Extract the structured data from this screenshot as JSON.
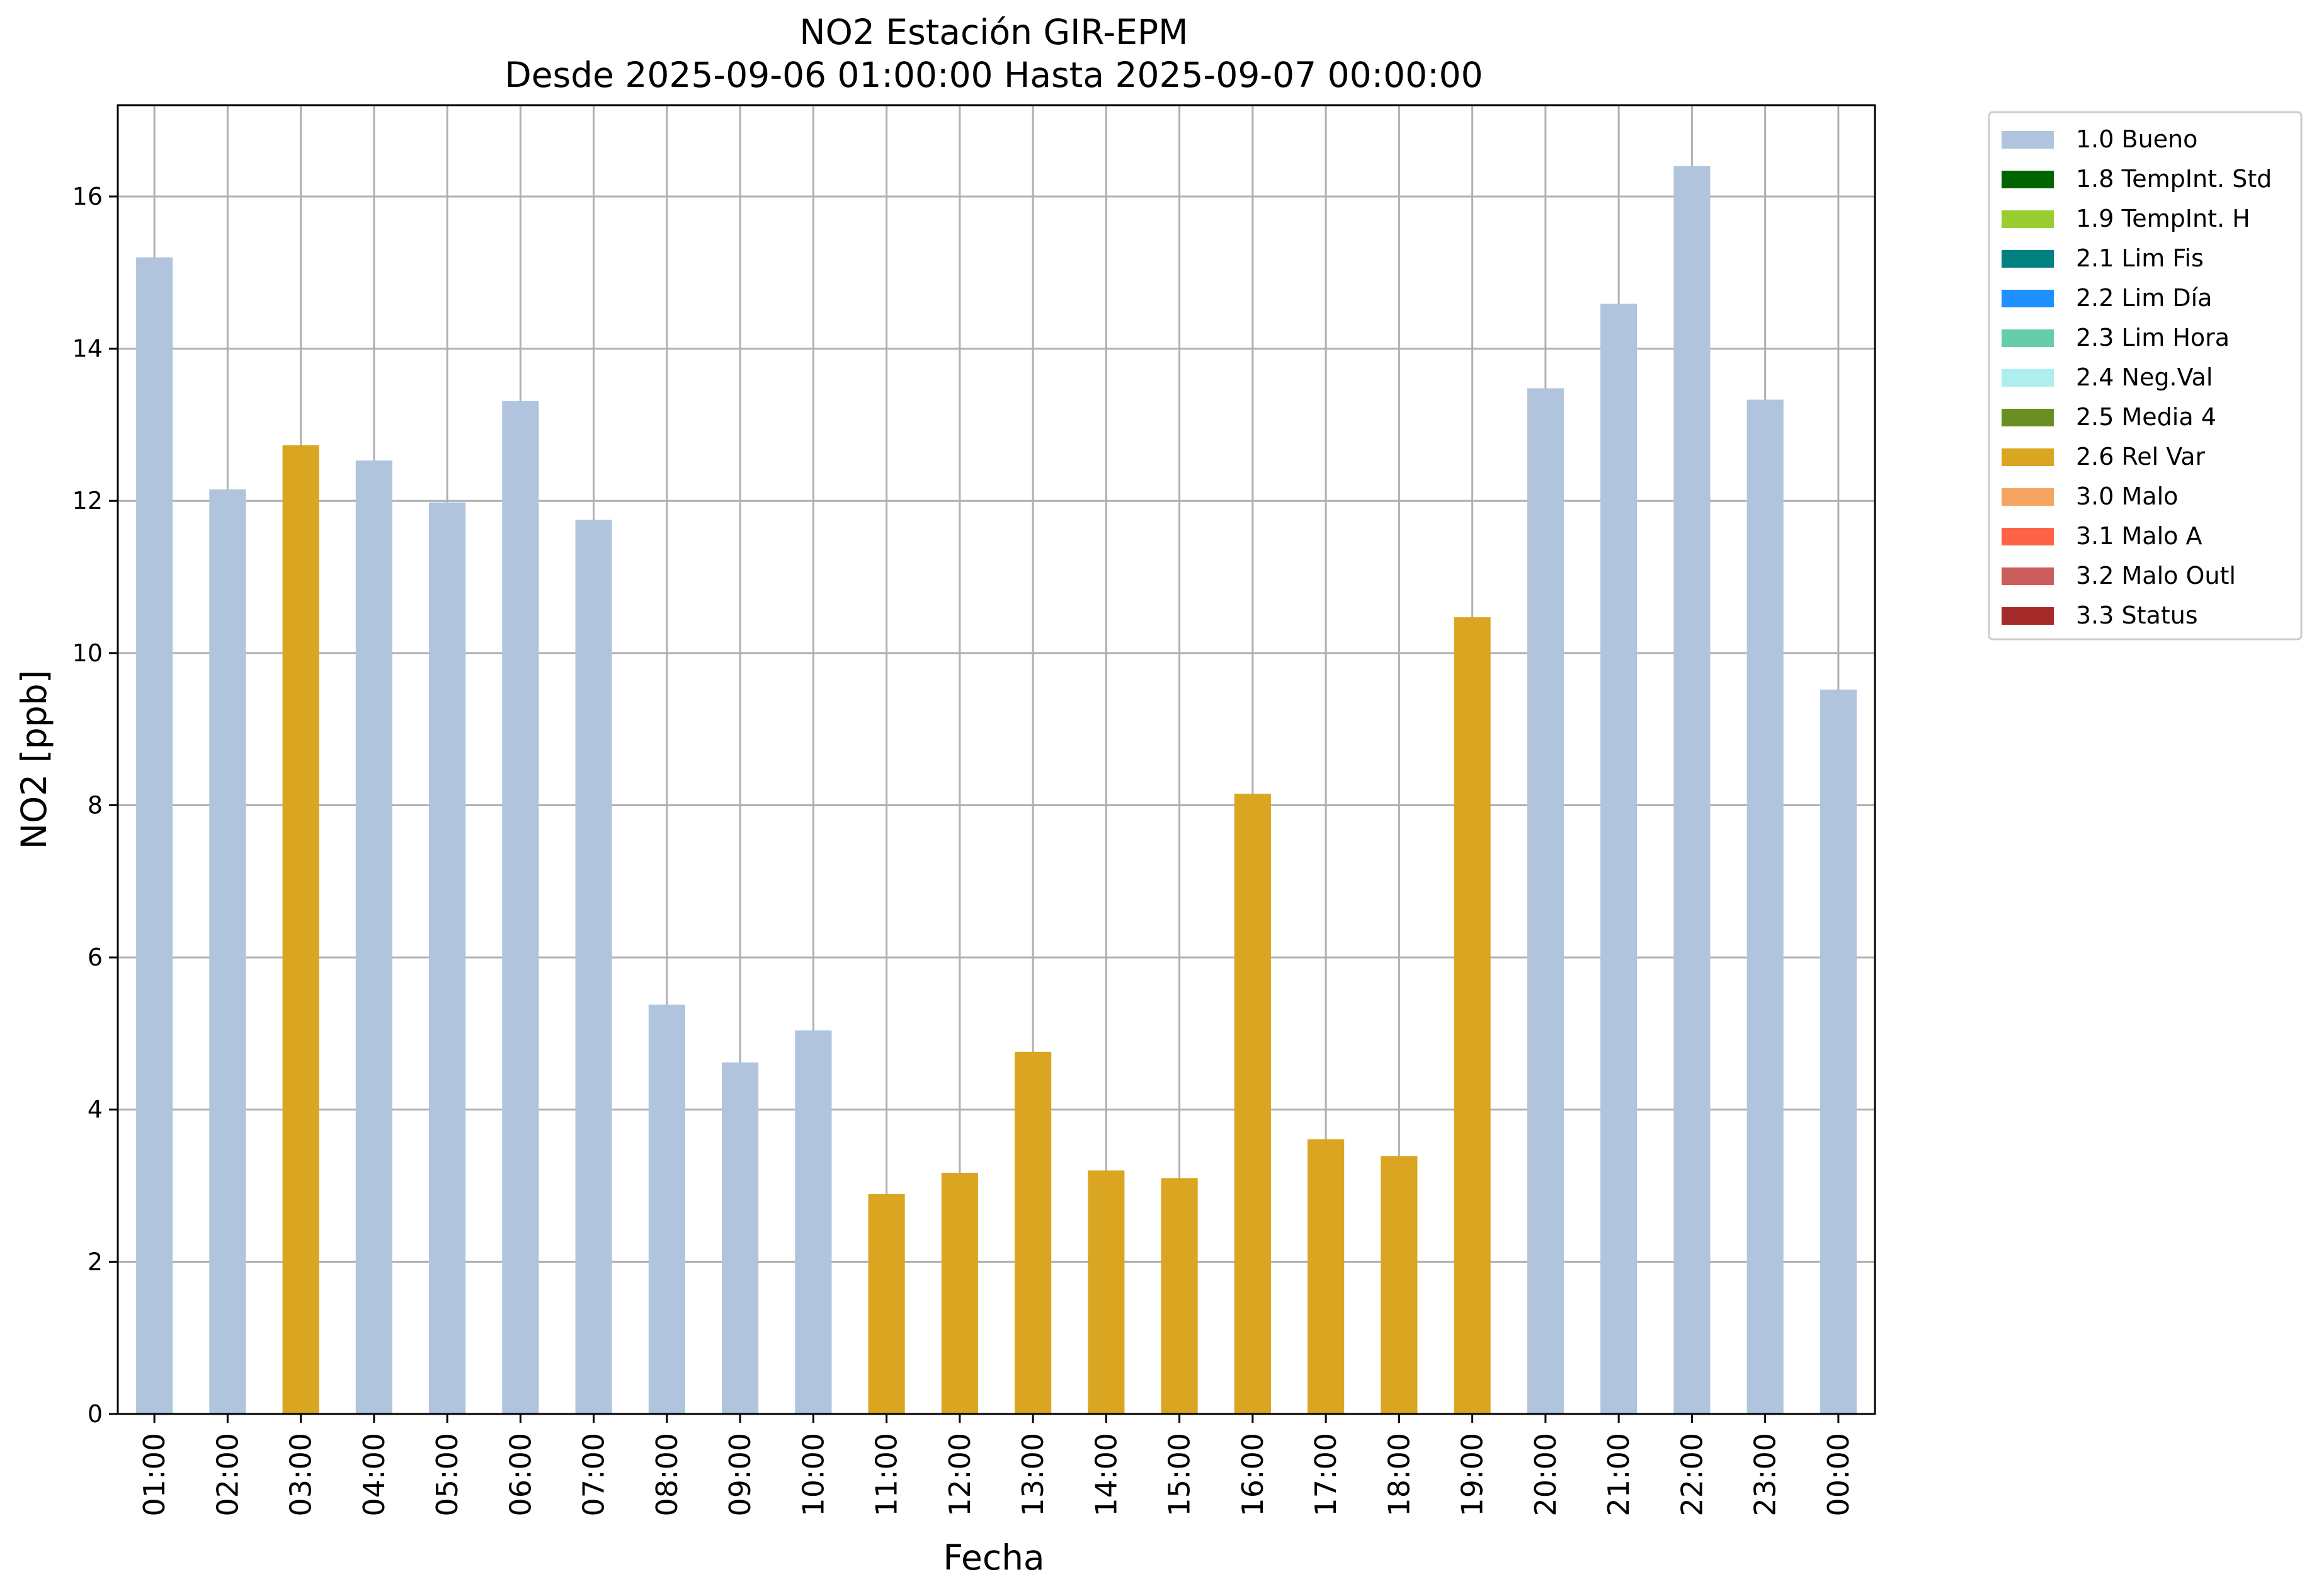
{
  "chart_data": {
    "type": "bar",
    "title": "NO2 Estación GIR-EPM",
    "subtitle": "Desde 2025-09-06 01:00:00 Hasta 2025-09-07 00:00:00",
    "xlabel": "Fecha",
    "ylabel": "NO2 [ppb]",
    "ylim": [
      0,
      17.2
    ],
    "yticks": [
      0,
      2,
      4,
      6,
      8,
      10,
      12,
      14,
      16
    ],
    "grid": true,
    "legend_position": "outside-top-right",
    "categories": [
      "01:00",
      "02:00",
      "03:00",
      "04:00",
      "05:00",
      "06:00",
      "07:00",
      "08:00",
      "09:00",
      "10:00",
      "11:00",
      "12:00",
      "13:00",
      "14:00",
      "15:00",
      "16:00",
      "17:00",
      "18:00",
      "19:00",
      "20:00",
      "21:00",
      "22:00",
      "23:00",
      "00:00"
    ],
    "values": [
      15.2,
      12.15,
      12.73,
      12.53,
      11.98,
      13.31,
      11.75,
      5.38,
      4.62,
      5.04,
      2.89,
      3.17,
      4.76,
      3.2,
      3.1,
      8.15,
      3.61,
      3.39,
      10.47,
      13.48,
      14.59,
      16.4,
      13.33,
      9.52
    ],
    "flags": [
      "1.0 Bueno",
      "1.0 Bueno",
      "2.6 Rel Var",
      "1.0 Bueno",
      "1.0 Bueno",
      "1.0 Bueno",
      "1.0 Bueno",
      "1.0 Bueno",
      "1.0 Bueno",
      "1.0 Bueno",
      "2.6 Rel Var",
      "2.6 Rel Var",
      "2.6 Rel Var",
      "2.6 Rel Var",
      "2.6 Rel Var",
      "2.6 Rel Var",
      "2.6 Rel Var",
      "2.6 Rel Var",
      "2.6 Rel Var",
      "1.0 Bueno",
      "1.0 Bueno",
      "1.0 Bueno",
      "1.0 Bueno",
      "1.0 Bueno"
    ],
    "legend": [
      {
        "name": "1.0 Bueno",
        "color": "#b0c4de"
      },
      {
        "name": "1.8 TempInt. Std",
        "color": "#006400"
      },
      {
        "name": "1.9 TempInt. H",
        "color": "#9acd32"
      },
      {
        "name": "2.1 Lim Fis",
        "color": "#008080"
      },
      {
        "name": "2.2 Lim Día",
        "color": "#1e90ff"
      },
      {
        "name": "2.3 Lim Hora",
        "color": "#66cdaa"
      },
      {
        "name": "2.4 Neg.Val",
        "color": "#afeeee"
      },
      {
        "name": "2.5 Media 4",
        "color": "#6b8e23"
      },
      {
        "name": "2.6 Rel Var",
        "color": "#daa520"
      },
      {
        "name": "3.0 Malo",
        "color": "#f4a460"
      },
      {
        "name": "3.1 Malo A",
        "color": "#ff6347"
      },
      {
        "name": "3.2 Malo Outl",
        "color": "#cd5c5c"
      },
      {
        "name": "3.3 Status",
        "color": "#a52a2a"
      }
    ]
  }
}
